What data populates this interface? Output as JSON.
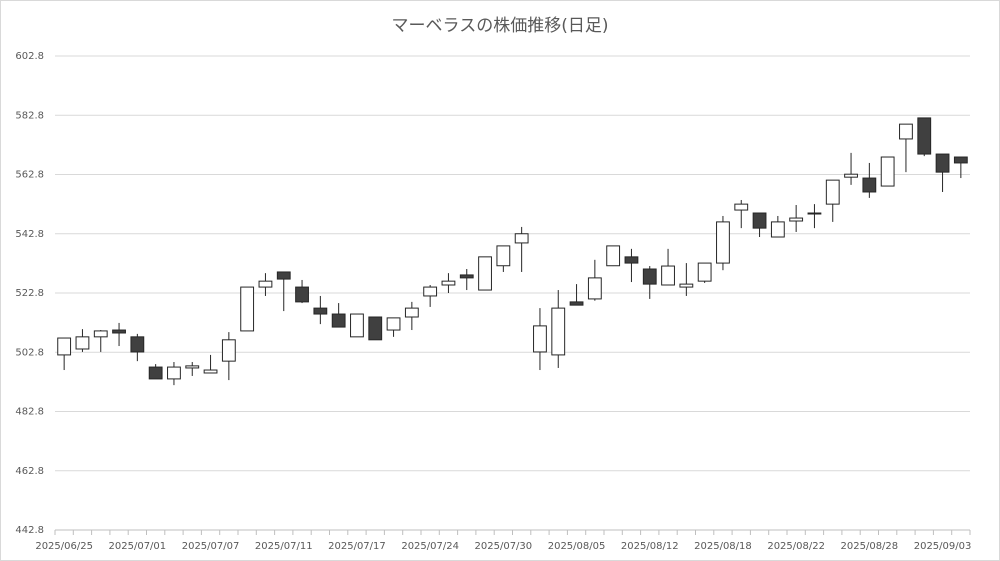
{
  "chart_data": {
    "type": "candlestick",
    "title": "マーベラスの株価推移(日足)",
    "categories": [
      "2025/06/25",
      null,
      null,
      null,
      "2025/07/01",
      null,
      null,
      null,
      "2025/07/07",
      null,
      null,
      null,
      "2025/07/11",
      null,
      null,
      null,
      "2025/07/17",
      null,
      null,
      null,
      "2025/07/24",
      null,
      null,
      null,
      "2025/07/30",
      null,
      null,
      null,
      "2025/08/05",
      null,
      null,
      null,
      "2025/08/12",
      null,
      null,
      null,
      "2025/08/18",
      null,
      null,
      null,
      "2025/08/22",
      null,
      null,
      null,
      "2025/08/28",
      null,
      null,
      null,
      "2025/09/03",
      null
    ],
    "open": [
      501.9,
      503.9,
      508.0,
      510.3,
      508.0,
      497.8,
      493.8,
      497.5,
      495.8,
      499.8,
      510.0,
      524.8,
      529.9,
      524.8,
      517.7,
      515.7,
      508.0,
      514.7,
      510.3,
      514.7,
      521.8,
      525.5,
      528.9,
      523.8,
      532.0,
      539.7,
      502.9,
      501.9,
      519.8,
      520.8,
      532.0,
      535.0,
      530.9,
      525.5,
      524.8,
      526.8,
      532.9,
      550.8,
      549.8,
      541.7,
      547.1,
      549.8,
      552.8,
      561.9,
      561.6,
      558.9,
      574.8,
      581.9,
      569.7,
      568.7
    ],
    "high": [
      507.6,
      510.6,
      510.3,
      512.7,
      509.0,
      498.8,
      499.5,
      499.5,
      501.9,
      509.6,
      524.8,
      529.5,
      529.9,
      527.2,
      521.8,
      519.4,
      515.7,
      514.7,
      514.4,
      519.8,
      525.5,
      529.5,
      530.9,
      535.0,
      538.7,
      545.1,
      517.7,
      523.8,
      525.8,
      534.0,
      538.7,
      537.7,
      531.9,
      537.7,
      532.9,
      532.9,
      548.8,
      554.2,
      549.8,
      548.8,
      552.5,
      552.8,
      560.9,
      570.1,
      566.7,
      568.7,
      579.8,
      581.9,
      569.7,
      568.7
    ],
    "low": [
      496.8,
      502.9,
      502.9,
      504.9,
      499.8,
      493.8,
      491.7,
      494.8,
      495.8,
      493.4,
      510.0,
      521.8,
      516.7,
      519.4,
      512.3,
      511.3,
      508.0,
      507.0,
      508.0,
      510.3,
      518.1,
      522.8,
      523.8,
      523.8,
      529.9,
      529.9,
      496.8,
      497.5,
      518.7,
      520.2,
      531.9,
      526.5,
      520.8,
      525.5,
      521.8,
      526.2,
      530.5,
      544.7,
      541.7,
      541.7,
      543.4,
      544.7,
      546.8,
      559.3,
      554.9,
      558.9,
      563.6,
      569.0,
      556.9,
      561.6
    ],
    "close": [
      507.6,
      508.0,
      510.0,
      509.3,
      502.9,
      493.8,
      497.8,
      498.2,
      496.8,
      507.0,
      524.8,
      526.8,
      527.5,
      519.8,
      515.7,
      511.3,
      515.7,
      507.0,
      514.4,
      517.7,
      524.8,
      526.8,
      527.9,
      535.0,
      538.7,
      542.8,
      511.7,
      517.7,
      518.7,
      527.9,
      538.7,
      532.9,
      525.8,
      531.9,
      525.8,
      532.9,
      546.8,
      552.8,
      544.7,
      546.8,
      548.1,
      549.5,
      560.9,
      562.9,
      556.9,
      568.7,
      579.8,
      569.7,
      563.6,
      566.7
    ],
    "up_color": "#ffffff",
    "down_color": "#404040",
    "ylim": [
      442.8,
      602.8
    ],
    "yticks": [
      442.8,
      462.8,
      482.8,
      502.8,
      522.8,
      542.8,
      562.8,
      582.8,
      602.8
    ],
    "grid": true
  }
}
